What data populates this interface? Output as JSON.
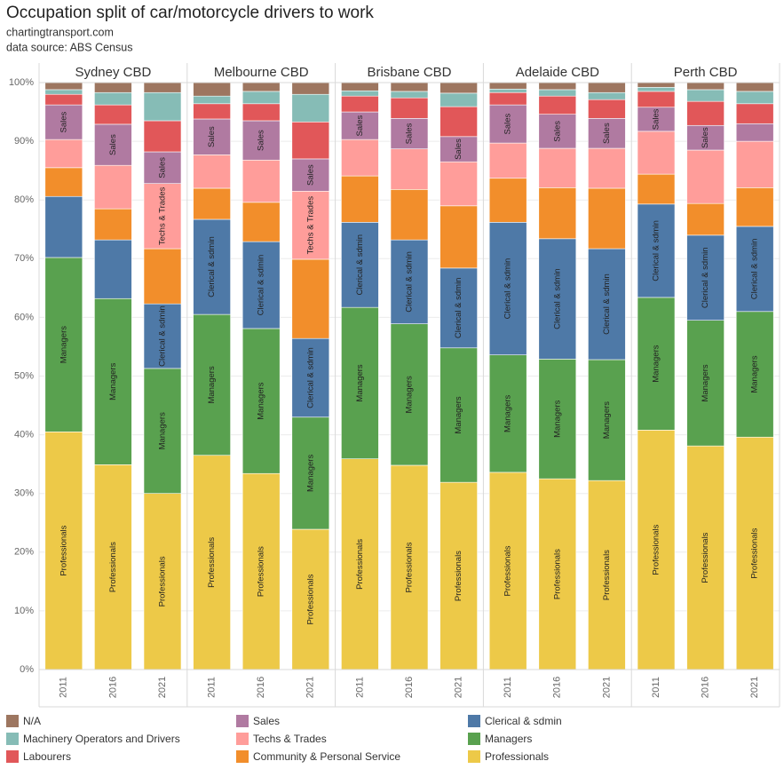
{
  "chart_data": {
    "type": "bar",
    "stacked": true,
    "title": "Occupation split of car/motorcycle drivers to work",
    "subtitle": [
      "chartingtransport.com",
      "data source: ABS Census"
    ],
    "facets": [
      {
        "name": "Sydney CBD",
        "categories": [
          "2011",
          "2016",
          "2021"
        ]
      },
      {
        "name": "Melbourne CBD",
        "categories": [
          "2011",
          "2016",
          "2021"
        ]
      },
      {
        "name": "Brisbane CBD",
        "categories": [
          "2011",
          "2016",
          "2021"
        ]
      },
      {
        "name": "Adelaide CBD",
        "categories": [
          "2011",
          "2016",
          "2021"
        ]
      },
      {
        "name": "Perth CBD",
        "categories": [
          "2011",
          "2016",
          "2021"
        ]
      }
    ],
    "ylim": [
      0,
      100
    ],
    "yticks": [
      {
        "value": 0,
        "label": "0%"
      },
      {
        "value": 10,
        "label": "10%"
      },
      {
        "value": 20,
        "label": "20%"
      },
      {
        "value": 30,
        "label": "30%"
      },
      {
        "value": 40,
        "label": "40%"
      },
      {
        "value": 50,
        "label": "50%"
      },
      {
        "value": 60,
        "label": "60%"
      },
      {
        "value": 70,
        "label": "70%"
      },
      {
        "value": 80,
        "label": "80%"
      },
      {
        "value": 90,
        "label": "90%"
      },
      {
        "value": 100,
        "label": "100%"
      }
    ],
    "grid": true,
    "legend": "bottom",
    "series": [
      {
        "name": "Professionals",
        "color": "#edc948",
        "values": [
          40.5,
          34.9,
          30.0,
          36.5,
          33.4,
          23.9,
          35.9,
          34.8,
          31.9,
          33.6,
          32.5,
          32.2,
          40.8,
          38.1,
          39.6
        ]
      },
      {
        "name": "Managers",
        "color": "#59a14f",
        "values": [
          29.7,
          28.3,
          21.3,
          24.0,
          24.7,
          19.1,
          25.8,
          24.1,
          22.9,
          20.0,
          20.4,
          20.6,
          22.6,
          21.4,
          21.4
        ]
      },
      {
        "name": "Clerical & sdmin",
        "color": "#4e79a7",
        "values": [
          10.4,
          10.0,
          11.0,
          16.2,
          14.8,
          13.4,
          14.5,
          14.3,
          13.6,
          22.6,
          20.5,
          18.9,
          15.9,
          14.5,
          14.5
        ]
      },
      {
        "name": "Community & Personal Service",
        "color": "#f28e2b",
        "values": [
          4.9,
          5.3,
          9.4,
          5.3,
          6.7,
          13.5,
          7.9,
          8.6,
          10.6,
          7.5,
          8.7,
          10.3,
          5.1,
          5.4,
          6.6
        ]
      },
      {
        "name": "Techs & Trades",
        "color": "#ff9d9a",
        "values": [
          4.8,
          7.4,
          11.1,
          5.7,
          7.2,
          11.6,
          6.2,
          6.9,
          7.5,
          6.0,
          6.7,
          6.8,
          7.3,
          9.1,
          7.9
        ]
      },
      {
        "name": "Sales",
        "color": "#b07aa1",
        "values": [
          5.9,
          7.0,
          5.4,
          6.1,
          6.7,
          5.5,
          4.7,
          5.2,
          4.3,
          6.5,
          5.8,
          5.1,
          4.1,
          4.2,
          3.0
        ]
      },
      {
        "name": "Labourers",
        "color": "#e15759",
        "values": [
          1.8,
          3.3,
          5.3,
          2.6,
          2.9,
          6.3,
          2.7,
          3.5,
          5.1,
          2.1,
          3.1,
          3.2,
          2.7,
          4.1,
          3.4
        ]
      },
      {
        "name": "Machinery Operators and Drivers",
        "color": "#86bcb6",
        "values": [
          0.8,
          2.1,
          4.8,
          1.3,
          2.1,
          4.7,
          0.9,
          1.1,
          2.3,
          0.6,
          1.1,
          1.2,
          0.7,
          2.0,
          2.1
        ]
      },
      {
        "name": "N/A",
        "color": "#9d7660",
        "values": [
          1.2,
          1.7,
          1.7,
          2.3,
          1.5,
          2.0,
          1.4,
          1.5,
          1.8,
          1.1,
          1.2,
          1.7,
          0.8,
          1.2,
          1.5
        ]
      }
    ]
  }
}
